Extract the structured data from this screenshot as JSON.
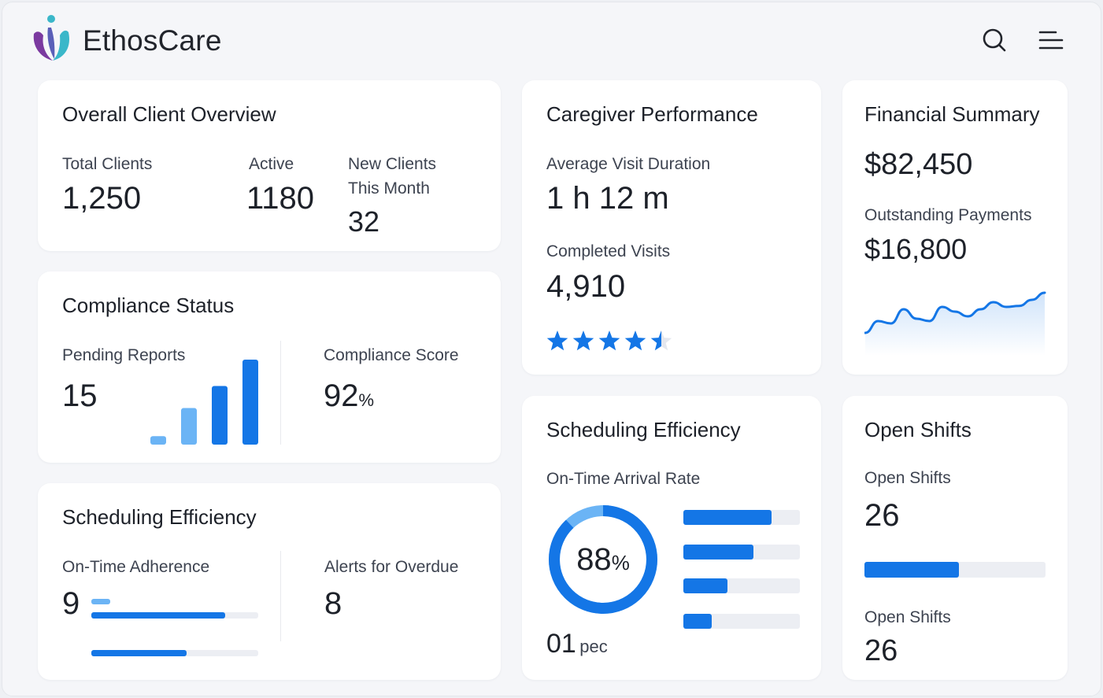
{
  "app": {
    "brand": "EthosCare",
    "colors": {
      "accent": "#1476e6",
      "accent_light": "#6bb4f5",
      "logo_purple": "#7b3aa0",
      "logo_teal": "#3ab7c9"
    },
    "icons": {
      "search": "search-icon",
      "menu": "menu-icon"
    }
  },
  "client_overview": {
    "title": "Overall Client Overview",
    "total_label": "Total Clients",
    "total_value": "1,250",
    "active_label": "Active",
    "active_value": "1180",
    "new_label_line1": "New Clients",
    "new_label_line2": "This Month",
    "new_value": "32"
  },
  "compliance": {
    "title": "Compliance Status",
    "pending_label": "Pending Reports",
    "pending_value": "15",
    "bar_levels": [
      0.1,
      0.43,
      0.69,
      1.0
    ],
    "score_label": "Compliance Score",
    "score_value": "92",
    "score_unit": "%"
  },
  "scheduling_left": {
    "title": "Scheduling Efficiency",
    "adherence_label": "On-Time Adherence",
    "adherence_value": "9",
    "bar_levels": [
      0.8,
      0.57
    ],
    "alerts_label": "Alerts for Overdue",
    "alerts_value": "8"
  },
  "caregiver": {
    "title": "Caregiver Performance",
    "duration_label": "Average Visit Duration",
    "duration_value": "1 h 12 m",
    "visits_label": "Completed Visits",
    "visits_value": "4,910",
    "rating": 4.5,
    "rating_max": 5
  },
  "scheduling_mid": {
    "title": "Scheduling Efficiency",
    "rate_label": "On-Time Arrival Rate",
    "rate_value": "88",
    "rate_unit": "%",
    "rate_fraction": 0.88,
    "bar_levels": [
      0.76,
      0.6,
      0.38,
      0.24
    ],
    "footer_value": "01",
    "footer_unit": "pec"
  },
  "financial": {
    "title": "Financial Summary",
    "total_value": "$82,450",
    "outstanding_label": "Outstanding Payments",
    "outstanding_value": "$16,800",
    "trend": [
      0.05,
      0.3,
      0.25,
      0.55,
      0.35,
      0.3,
      0.6,
      0.5,
      0.4,
      0.55,
      0.7,
      0.6,
      0.62,
      0.75,
      0.9
    ]
  },
  "open_shifts": {
    "title": "Open Shifts",
    "label_1": "Open Shifts",
    "value_1": "26",
    "progress": 0.52,
    "label_2": "Open Shifts",
    "value_2": "26"
  }
}
